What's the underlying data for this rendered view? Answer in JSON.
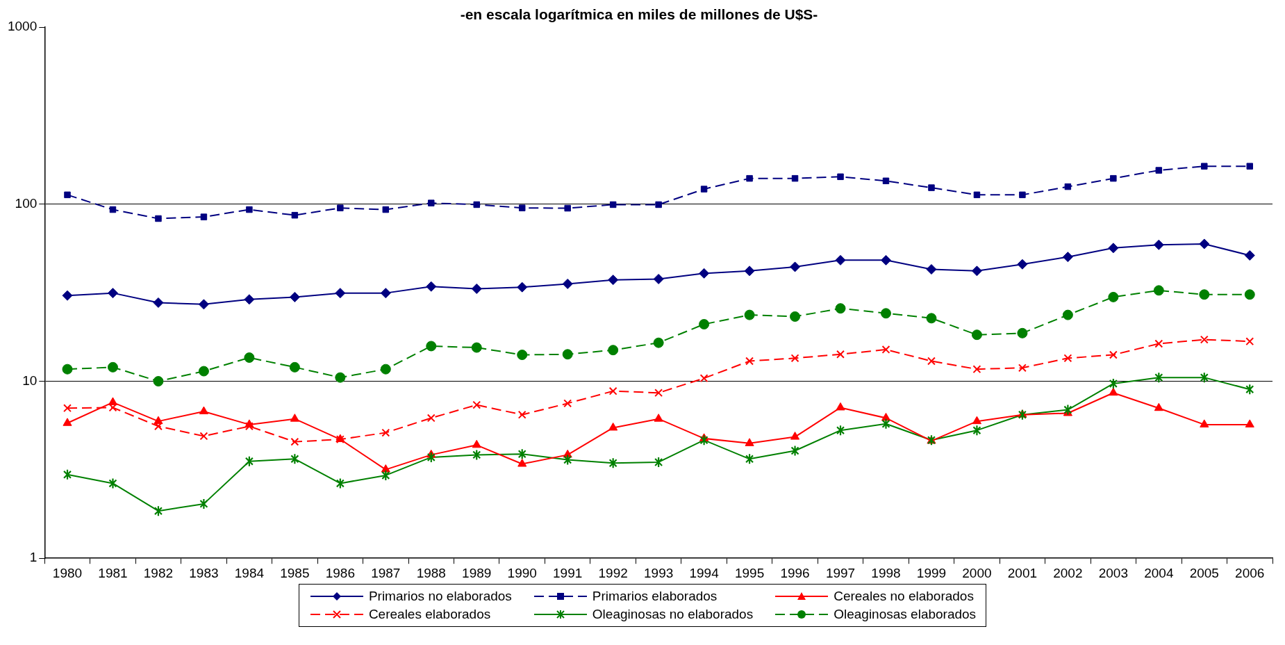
{
  "chart_data": {
    "type": "line",
    "title": "-en escala logarítmica en miles de millones de U$S-",
    "categories": [
      "1980",
      "1981",
      "1982",
      "1983",
      "1984",
      "1985",
      "1986",
      "1987",
      "1988",
      "1989",
      "1990",
      "1991",
      "1992",
      "1993",
      "1994",
      "1995",
      "1996",
      "1997",
      "1998",
      "1999",
      "2000",
      "2001",
      "2002",
      "2003",
      "2004",
      "2005",
      "2006"
    ],
    "series": [
      {
        "name": "Primarios no elaborados",
        "color": "#000080",
        "marker": "diamond",
        "line_style": "solid",
        "values": [
          30.5,
          31.5,
          27.8,
          27.2,
          29,
          29.9,
          31.5,
          31.5,
          34.3,
          33.3,
          34,
          35.5,
          37.4,
          37.8,
          40.7,
          42,
          44.3,
          48.3,
          48.3,
          42.9,
          42,
          45.8,
          50.4,
          56.6,
          59,
          59.7,
          51.4
        ]
      },
      {
        "name": "Primarios elaborados",
        "color": "#000080",
        "marker": "square",
        "line_style": "dashed",
        "values": [
          113,
          93.3,
          83,
          84.8,
          93.3,
          86.7,
          95.3,
          93.3,
          101.6,
          99.5,
          95.3,
          95,
          99.5,
          99.5,
          121.8,
          140,
          140,
          143,
          135.5,
          124,
          113,
          113,
          125.7,
          140,
          155.5,
          164,
          164
        ]
      },
      {
        "name": "Cereales no elaborados",
        "color": "#ff0000",
        "marker": "triangle",
        "line_style": "solid",
        "values": [
          5.8,
          7.6,
          5.94,
          6.75,
          5.69,
          6.13,
          4.7,
          3.17,
          3.84,
          4.36,
          3.41,
          3.84,
          5.46,
          6.13,
          4.75,
          4.46,
          4.85,
          7.1,
          6.2,
          4.6,
          5.94,
          6.47,
          6.6,
          8.6,
          7.05,
          5.69,
          5.69
        ]
      },
      {
        "name": "Cereales elaborados",
        "color": "#ff0000",
        "marker": "cross",
        "line_style": "dashed",
        "values": [
          7.05,
          7.1,
          5.57,
          4.9,
          5.57,
          4.55,
          4.7,
          5.12,
          6.2,
          7.35,
          6.47,
          7.5,
          8.8,
          8.6,
          10.4,
          13,
          13.5,
          14.2,
          15.1,
          13,
          11.7,
          11.9,
          13.5,
          14.1,
          16.3,
          17.2,
          16.8
        ]
      },
      {
        "name": "Oleaginosas no elaborados",
        "color": "#008000",
        "marker": "star",
        "line_style": "solid",
        "values": [
          2.97,
          2.65,
          1.85,
          2.03,
          3.53,
          3.64,
          2.65,
          2.94,
          3.72,
          3.84,
          3.88,
          3.6,
          3.45,
          3.49,
          4.65,
          3.64,
          4.05,
          5.28,
          5.75,
          4.65,
          5.28,
          6.47,
          6.9,
          9.7,
          10.5,
          10.5,
          9
        ]
      },
      {
        "name": "Oleaginosas elaborados",
        "color": "#008000",
        "marker": "circle",
        "line_style": "dashed",
        "values": [
          11.7,
          12,
          10,
          11.4,
          13.6,
          12,
          10.5,
          11.7,
          15.8,
          15.5,
          14.1,
          14.2,
          15,
          16.5,
          21,
          23.7,
          23.2,
          25.8,
          24.2,
          22.7,
          18.3,
          18.7,
          23.7,
          29.9,
          32.6,
          30.9,
          30.9
        ]
      }
    ],
    "log": "y",
    "ylim": [
      1,
      1000
    ],
    "yticks": [
      1,
      10,
      100,
      1000
    ],
    "grid": "y",
    "legend": "bottom"
  }
}
